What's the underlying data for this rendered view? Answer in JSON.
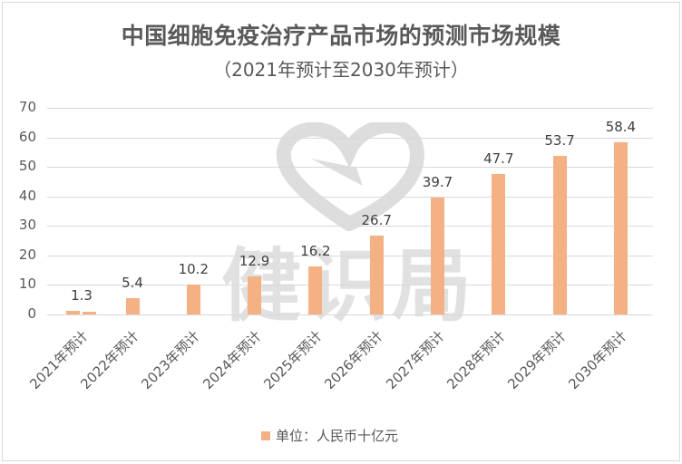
{
  "chart_data": {
    "type": "bar",
    "title": "中国细胞免疫治疗产品市场的预测市场规模",
    "subtitle": "（2021年预计至2030年预计）",
    "categories": [
      "2021年预计",
      "2022年预计",
      "2023年预计",
      "2024年预计",
      "2025年预计",
      "2026年预计",
      "2027年预计",
      "2028年预计",
      "2029年预计",
      "2030年预计"
    ],
    "series": [
      {
        "name": "单位：人民币十亿元",
        "values": [
          1.3,
          5.4,
          10.2,
          12.9,
          16.2,
          26.7,
          39.7,
          47.7,
          53.7,
          58.4
        ],
        "color": "#f4b183"
      }
    ],
    "data_labels": [
      "1.3",
      "5.4",
      "10.2",
      "12.9",
      "16.2",
      "26.7",
      "39.7",
      "47.7",
      "53.7",
      "58.4"
    ],
    "xlabel": "",
    "ylabel": "",
    "ylim": [
      0,
      70
    ],
    "yticks": [
      0,
      10,
      20,
      30,
      40,
      50,
      60,
      70
    ],
    "grid": true,
    "legend_position": "bottom"
  },
  "title": "中国细胞免疫治疗产品市场的预测市场规模",
  "subtitle": "（2021年预计至2030年预计）",
  "yticks": [
    "0",
    "10",
    "20",
    "30",
    "40",
    "50",
    "60",
    "70"
  ],
  "legend": {
    "label": "单位：人民币十亿元"
  },
  "watermark": {
    "text": "健识局"
  }
}
